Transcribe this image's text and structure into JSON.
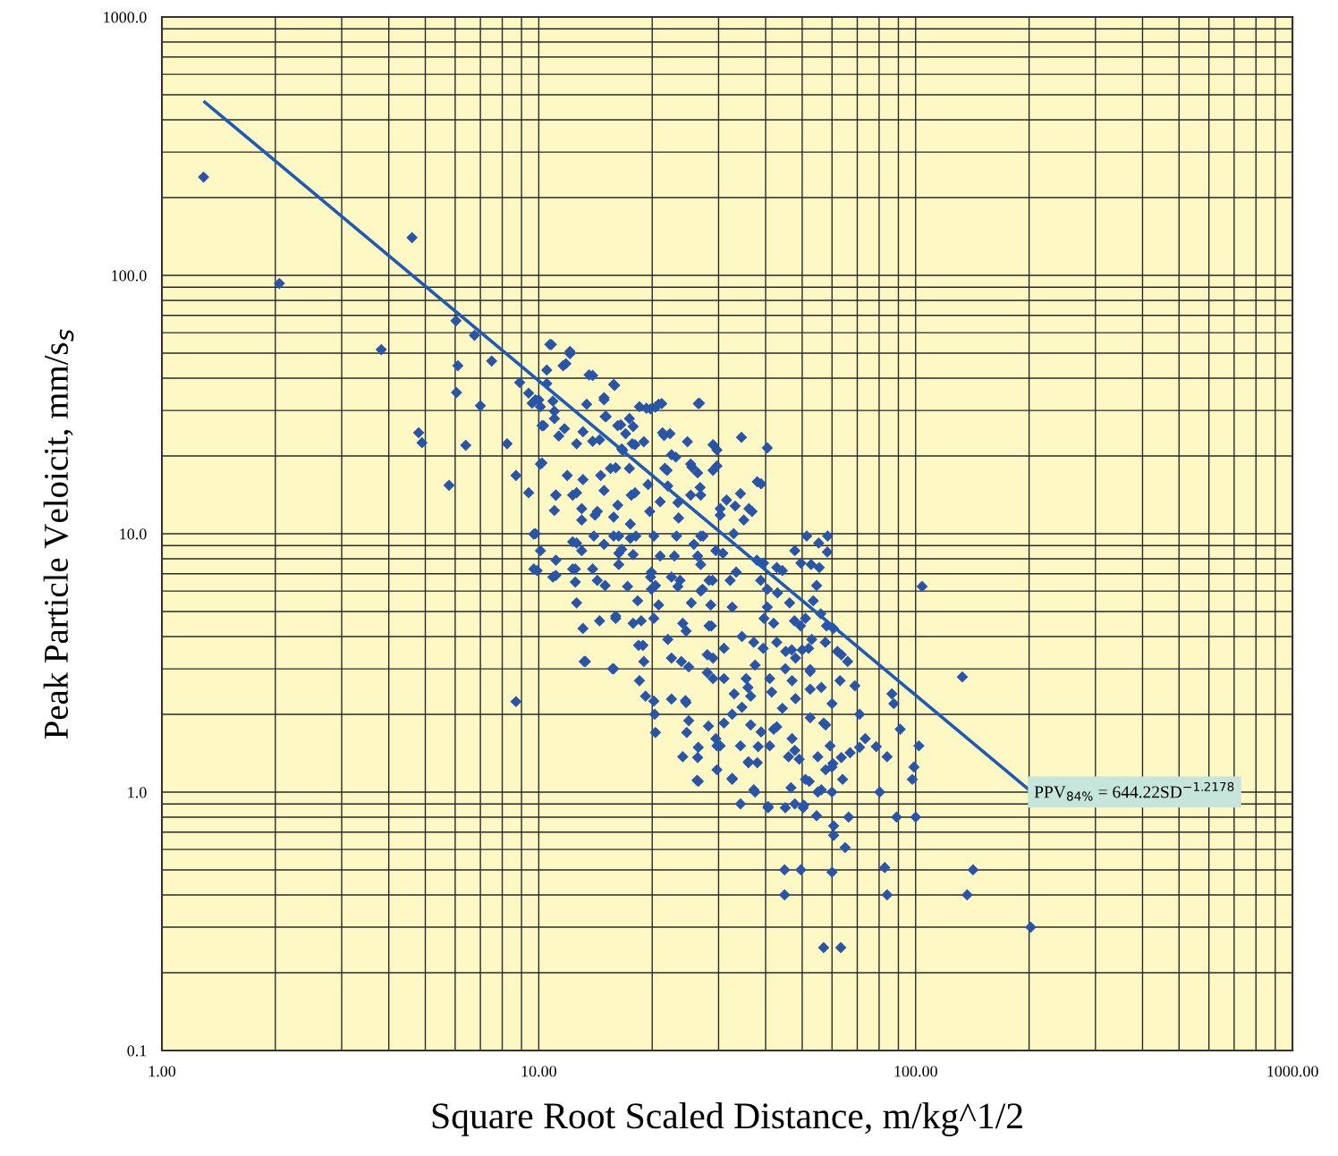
{
  "chart_data": {
    "type": "scatter",
    "xlabel": "Square Root Scaled Distance, m/kg^1/2",
    "ylabel": "Peak Particle Veloicit, mm/s$_{s}$",
    "log": "xy",
    "grid": true,
    "marker": "diamond",
    "xlim": [
      1,
      1000
    ],
    "ylim": [
      0.1,
      1000
    ],
    "xticks": [
      {
        "value": 1,
        "label": "1.00"
      },
      {
        "value": 10,
        "label": "10.00"
      },
      {
        "value": 100,
        "label": "100.00"
      },
      {
        "value": 1000,
        "label": "1000.00"
      }
    ],
    "yticks": [
      {
        "value": 0.1,
        "label": "0.1"
      },
      {
        "value": 1,
        "label": "1.0"
      },
      {
        "value": 10,
        "label": "10.0"
      },
      {
        "value": 100,
        "label": "100.0"
      },
      {
        "value": 1000,
        "label": "1000.0"
      }
    ],
    "annotations": [
      {
        "text": "PPV$_{84%}$ = 644.22SD$^{−1.2178}$",
        "x": 200,
        "y": 1.0
      }
    ],
    "series": [
      {
        "color": "#2855a8",
        "x": [
          1.29,
          2.05,
          3.82,
          4.61,
          4.8,
          4.9,
          5.78,
          6.03,
          6.1,
          6.05,
          6.4,
          6.75,
          7.0,
          7.5,
          8.24,
          8.7,
          8.7,
          9.4,
          9.6,
          10,
          10.1,
          9.4,
          9.8,
          9.9,
          10.1,
          10.2,
          10.5,
          10.7,
          11.0,
          11.1,
          11.0,
          11.1,
          11.3,
          11.6,
          11.7,
          12.1,
          12.3,
          12.3,
          12.5,
          12.6,
          13.1,
          13.2,
          13.4,
          13.6,
          13.9,
          14.0,
          14.3,
          14.9,
          15.1,
          15.5,
          15.9,
          15.8,
          16.2,
          16.3,
          16.3,
          16.0,
          16.5,
          16.7,
          17.0,
          17.4,
          17.8,
          18.0,
          17.6,
          18.1,
          18.4,
          18.7,
          19.0,
          19.3,
          19.8,
          20.4,
          21.2,
          19.9,
          19.9,
          20.2,
          20.3,
          20.4,
          21.6,
          22.0,
          21.5,
          22.3,
          23.1,
          23.5,
          23.7,
          23.9,
          24.5,
          24.7,
          24.8,
          25.3,
          25.3,
          25.8,
          26.5,
          26.4,
          26.8,
          27.3,
          27.2,
          26.4,
          26.5,
          28.3,
          28.7,
          29.0,
          29.0,
          29.7,
          30.3,
          30.8,
          31.5,
          32.2,
          32.6,
          32.9,
          33.4,
          33.2,
          34.3,
          34.5,
          35.0,
          36.1,
          36.8,
          38.0,
          37.9,
          38.9,
          39.5,
          40.4,
          42.8,
          44.3,
          40.4,
          42.0,
          42.8,
          41.0,
          37.5,
          35.5,
          36.5,
          34.6,
          32.6,
          31.0,
          30.3,
          29.7,
          32.6,
          34.3,
          37.2,
          38.9,
          38.2,
          40.6,
          42.8,
          44.3,
          45.1,
          46.9,
          48,
          50,
          52,
          53,
          45.1,
          46.7,
          47.8,
          47.8,
          49.1,
          50.3,
          51.4,
          52.2,
          52.8,
          56.2,
          57.7,
          57.7,
          58.4,
          59.3,
          60.3,
          60.6,
          56.2,
          55.3,
          54.6,
          47.8,
          58.3,
          55.5,
          49.6,
          133,
          104,
          142,
          137,
          202,
          44.9,
          44.9,
          49.6,
          60,
          82.8,
          84,
          57,
          63.3,
          65,
          60.6,
          66.4,
          54.6,
          89,
          100,
          80.3,
          98,
          99,
          102,
          91,
          87.5,
          86.5,
          84,
          78.6,
          73.5,
          71,
          69,
          66,
          63.5,
          71,
          67,
          63.5,
          60,
          64,
          60,
          55,
          51,
          60,
          57,
          52.5,
          47,
          46,
          41,
          38,
          36,
          40.6,
          50.5,
          37.5,
          32.6,
          52.5,
          47,
          48,
          52.5,
          63,
          10.8,
          12.1,
          11.8,
          10.5,
          8.9,
          9.8,
          10.9,
          13.9,
          15.8,
          14.9,
          18.5,
          20.8,
          26.7,
          15,
          17.4,
          11,
          10.3,
          13.1,
          16.2,
          21.3,
          19,
          17.7,
          12.6,
          14.5,
          16.6,
          10.2,
          22.5,
          21.9,
          29.7,
          11.9,
          13.1,
          14.6,
          16,
          25.5,
          29,
          19.5,
          18,
          11.1,
          12.6,
          14.9,
          13,
          14.3,
          21,
          23.4,
          26.9,
          30.3,
          15.8,
          17.5,
          13,
          14.1,
          19.7,
          9.7,
          12.6,
          14.9,
          15.8,
          17.5,
          20.2,
          23.2,
          26.9,
          10.1,
          11.1,
          13,
          16.6,
          17.8,
          21,
          22.9,
          26.4,
          29.5,
          9.7,
          10.9,
          12.3,
          13.9,
          16.3,
          19.8,
          22.5,
          26.9,
          28.9,
          12.5,
          15,
          17.2,
          20.4,
          23.4,
          26.9,
          18.3,
          20.8,
          25.4,
          28.6,
          14.5,
          16,
          17.8,
          20.2,
          24.1,
          28.3,
          13.3,
          15.7,
          18.5,
          19.2,
          22.5,
          24.6,
          25,
          28.2,
          26.5,
          24.1,
          26.3,
          29.5,
          22.5,
          25,
          28,
          18.9,
          22,
          24.6,
          28,
          34.6,
          37.2,
          39.4,
          31,
          29,
          31,
          33,
          35.9,
          41.5,
          45.2,
          52.5,
          36.5,
          42,
          34.3,
          29.7,
          36,
          55,
          47.7,
          49.5,
          51,
          53.5,
          56,
          58,
          60.5,
          62,
          57.6,
          38.8,
          40.4,
          43,
          39.6,
          46.3
        ],
        "values": [
          240,
          93,
          51.6,
          140,
          24.6,
          22.5,
          15.4,
          66.7,
          44.7,
          35.2,
          22.0,
          58.6,
          31.3,
          46.6,
          22.3,
          16.8,
          2.24,
          35,
          32,
          33,
          31,
          14.4,
          10.0,
          7.2,
          18.6,
          26.2,
          38.1,
          54,
          29.8,
          6.9,
          12.3,
          14.1,
          23.9,
          44.7,
          25.5,
          49.7,
          14.1,
          9.3,
          7.3,
          5.4,
          4.3,
          3.2,
          31.7,
          41.2,
          22.8,
          9.8,
          6.6,
          33.6,
          28.4,
          17.9,
          37.5,
          3.0,
          12.9,
          9.8,
          8.4,
          4.8,
          26.4,
          21.0,
          24.4,
          17.9,
          26.0,
          22.1,
          14.1,
          9.8,
          3.7,
          4.6,
          3.2,
          30.6,
          30.4,
          30.9,
          31.9,
          7.1,
          6.1,
          2.25,
          2.0,
          1.7,
          17.9,
          15.3,
          24.0,
          24.4,
          19.8,
          11.5,
          6.6,
          3.2,
          2.26,
          1.7,
          22.7,
          18.6,
          14.1,
          9.1,
          31.9,
          17.2,
          15.1,
          9.8,
          6.1,
          1.36,
          1.1,
          6.6,
          4.4,
          2.75,
          22.1,
          18.3,
          11.8,
          8.4,
          13.5,
          6.6,
          5.2,
          10.0,
          7.1,
          12.8,
          14.3,
          23.6,
          11.3,
          12.5,
          12.2,
          15.9,
          7.9,
          15.6,
          7.7,
          21.5,
          7.4,
          7.2,
          5.2,
          4.5,
          3.8,
          2.75,
          3.1,
          2.75,
          2.35,
          2.13,
          2.0,
          1.85,
          1.51,
          1.22,
          1.13,
          0.9,
          1.02,
          1.71,
          1.5,
          0.87,
          1.79,
          2.11,
          3.0,
          3.55,
          3.3,
          3.55,
          3.6,
          3.9,
          0.87,
          1.04,
          0.9,
          1.45,
          1.34,
          0.87,
          9.8,
          1.1,
          7.6,
          2.54,
          1.82,
          1.22,
          9.8,
          1.51,
          1.29,
          0.68,
          1.02,
          9.2,
          6.3,
          8.6,
          8.5,
          7.4,
          7.7,
          2.79,
          6.25,
          0.5,
          0.4,
          0.3,
          0.5,
          0.4,
          0.5,
          0.49,
          0.51,
          0.4,
          0.25,
          0.25,
          0.61,
          0.74,
          0.8,
          0.81,
          0.8,
          0.8,
          1.0,
          1.12,
          1.25,
          1.51,
          1.75,
          2.2,
          2.4,
          1.37,
          1.5,
          1.61,
          2.0,
          2.58,
          3.2,
          3.4,
          1.49,
          1.42,
          1.36,
          1.25,
          1.12,
          1.0,
          1.0,
          1.12,
          2.2,
          1.85,
          1.94,
          1.61,
          1.37,
          1.51,
          1.3,
          1.3,
          0.88,
          0.89,
          1.0,
          1.12,
          2.98,
          2.7,
          2.3,
          2.5,
          2.7,
          54,
          50.8,
          45.5,
          43,
          38.5,
          33,
          32.6,
          41,
          37.8,
          33,
          31,
          31.7,
          32,
          28.4,
          27.9,
          27.9,
          26.2,
          24.8,
          26.2,
          24.6,
          22.7,
          22.3,
          22.3,
          23.1,
          21.3,
          18.8,
          20.2,
          17.6,
          21.1,
          16.8,
          16.2,
          16.8,
          18,
          18.1,
          17.6,
          15.5,
          14.4,
          14.1,
          14.4,
          14.7,
          12.5,
          12.2,
          13.3,
          13.2,
          14.1,
          12.5,
          11.6,
          10.9,
          11.3,
          11.8,
          12.2,
          9.96,
          9.2,
          9.1,
          9.8,
          9.6,
          9.8,
          9.8,
          9.8,
          8.6,
          7.9,
          8.6,
          8.7,
          8.3,
          8.2,
          8.2,
          8.2,
          8.6,
          7.3,
          6.8,
          7.3,
          7.3,
          7.6,
          6.8,
          6.8,
          7.6,
          6.6,
          6.5,
          6.3,
          6.25,
          6.3,
          6.25,
          6.0,
          5.5,
          5.3,
          5.4,
          5.3,
          4.6,
          4.7,
          4.5,
          4.7,
          4.5,
          4.4,
          3.2,
          3.0,
          2.7,
          2.35,
          2.29,
          2.22,
          1.89,
          1.8,
          1.49,
          1.37,
          1.11,
          1.61,
          3.3,
          3.05,
          3.4,
          3.7,
          3.9,
          4.2,
          2.9,
          4.0,
          3.8,
          3.6,
          3.6,
          3.3,
          2.75,
          2.4,
          2.54,
          2.44,
          3.5,
          2.93,
          1.82,
          1.75,
          1.51,
          1.51,
          1.31,
          1.37,
          4.6,
          4.4,
          4.7,
          5.5,
          4.9,
          4.4,
          4.3,
          3.5,
          3.8,
          6.6,
          6.1,
          5.9,
          4.7,
          5.4
        ]
      },
      {
        "type": "line",
        "color": "#1f5bb5",
        "marker": "none",
        "x": [
          1.3,
          200
        ],
        "values": [
          468,
          1.02
        ]
      }
    ]
  }
}
